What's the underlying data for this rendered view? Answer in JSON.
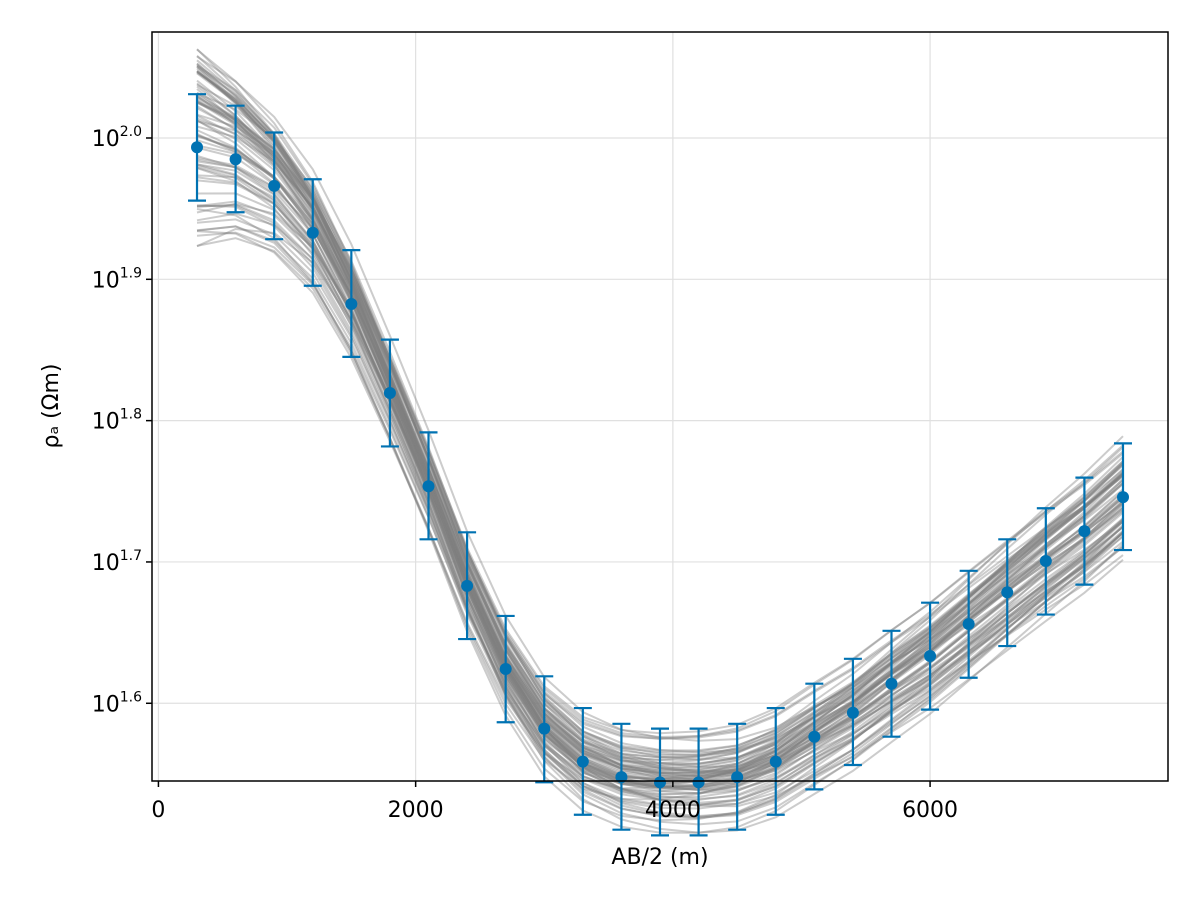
{
  "chart_data": {
    "type": "line",
    "xlabel": "AB/2 (m)",
    "ylabel": "ρₐ (Ωm)",
    "x_ticks": [
      0,
      2000,
      4000,
      6000
    ],
    "x_tick_labels": [
      "0",
      "2000",
      "4000",
      "6000"
    ],
    "xlim": [
      -50,
      7850
    ],
    "y_scale": "log10",
    "y_ticks_log10": [
      1.6,
      1.7,
      1.8,
      1.9,
      2.0
    ],
    "y_tick_labels": [
      {
        "base": "10",
        "exp": "1.6"
      },
      {
        "base": "10",
        "exp": "1.7"
      },
      {
        "base": "10",
        "exp": "1.8"
      },
      {
        "base": "10",
        "exp": "1.9"
      },
      {
        "base": "10",
        "exp": "2.0"
      }
    ],
    "ylim_log10": [
      1.545,
      2.075
    ],
    "grid": true,
    "colors": {
      "data": "#0072b2",
      "models": "#808080"
    },
    "observed": {
      "x": [
        300,
        600,
        900,
        1200,
        1500,
        1800,
        2100,
        2400,
        2700,
        3000,
        3300,
        3600,
        3900,
        4200,
        4500,
        4800,
        5100,
        5400,
        5700,
        6000,
        6300,
        6600,
        6900,
        7200,
        7500
      ],
      "y": [
        98.5,
        96.6,
        92.5,
        85.7,
        76.3,
        66.0,
        56.7,
        48.2,
        42.1,
        38.2,
        36.2,
        35.3,
        35.0,
        35.0,
        35.3,
        36.2,
        37.7,
        39.2,
        41.1,
        43.0,
        45.3,
        47.7,
        50.2,
        52.7,
        55.7
      ],
      "err_low": [
        90.3,
        88.6,
        84.8,
        78.6,
        70.0,
        60.5,
        52.0,
        44.2,
        38.6,
        35.0,
        33.2,
        32.4,
        32.1,
        32.1,
        32.4,
        33.2,
        34.6,
        36.0,
        37.7,
        39.4,
        41.5,
        43.7,
        46.0,
        48.3,
        51.1
      ],
      "err_high": [
        107.4,
        105.4,
        100.9,
        93.5,
        83.3,
        72.0,
        61.9,
        52.6,
        45.9,
        41.6,
        39.5,
        38.5,
        38.2,
        38.2,
        38.5,
        39.5,
        41.1,
        42.8,
        44.8,
        46.9,
        49.4,
        52.0,
        54.7,
        57.5,
        60.8
      ]
    }
  }
}
